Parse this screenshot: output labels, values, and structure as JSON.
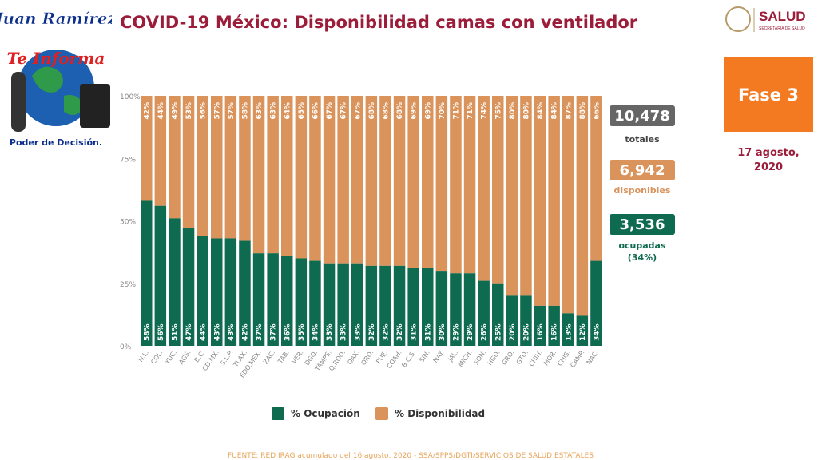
{
  "title": "COVID-19 México: Disponibilidad camas con ventilador",
  "brand": {
    "logo_line1": "Juan Ramírez",
    "logo_line2": "Te Informa",
    "logo_line3": "Poder de Decisión.",
    "salud": "SALUD",
    "salud_sub": "SECRETARÍA DE SALUD"
  },
  "phase": "Fase 3",
  "date_line1": "17 agosto,",
  "date_line2": "2020",
  "stats": {
    "total_value": "10,478",
    "total_label": "totales",
    "available_value": "6,942",
    "available_label": "disponibles",
    "occupied_value": "3,536",
    "occupied_label": "ocupadas",
    "occupied_pct": "(34%)"
  },
  "colors": {
    "occupied": "#0f6b4f",
    "available": "#d9935b",
    "title": "#9b1d3a",
    "total_box": "#666666",
    "phase": "#f37a21"
  },
  "legend": {
    "occupied": "% Ocupación",
    "available": "% Disponibilidad"
  },
  "source": "FUENTE: RED IRAG acumulado del 16 agosto, 2020 - SSA/SPPS/DGTI/SERVICIOS DE SALUD ESTATALES",
  "chart_data": {
    "type": "bar",
    "stacked": true,
    "y_ticks": [
      "0%",
      "25%",
      "50%",
      "75%",
      "100%"
    ],
    "ylim": [
      0,
      100
    ],
    "categories": [
      "N.L.",
      "COL.",
      "YUC.",
      "AGS.",
      "B.C.",
      "CD.MX.",
      "S.L.P.",
      "TLAX.",
      "EDO.MEX.",
      "ZAC.",
      "TAB.",
      "VER.",
      "DGO.",
      "TAMPS.",
      "Q.ROO.",
      "OAX.",
      "QRO.",
      "PUE.",
      "COAH.",
      "B.C.S.",
      "SIN.",
      "NAY.",
      "JAL.",
      "MICH.",
      "SON.",
      "HGO.",
      "GRO.",
      "GTO.",
      "CHIH.",
      "MOR.",
      "CHIS.",
      "CAMP.",
      "NAC."
    ],
    "series": [
      {
        "name": "% Ocupación",
        "values": [
          58,
          56,
          51,
          47,
          44,
          43,
          43,
          42,
          37,
          37,
          36,
          35,
          34,
          33,
          33,
          33,
          32,
          32,
          32,
          31,
          31,
          30,
          29,
          29,
          26,
          25,
          20,
          20,
          16,
          16,
          13,
          12,
          34
        ]
      },
      {
        "name": "% Disponibilidad",
        "values": [
          42,
          44,
          49,
          53,
          56,
          57,
          57,
          58,
          63,
          63,
          64,
          65,
          66,
          67,
          67,
          67,
          68,
          68,
          68,
          69,
          69,
          70,
          71,
          71,
          74,
          75,
          80,
          80,
          84,
          84,
          87,
          88,
          66
        ]
      }
    ]
  }
}
